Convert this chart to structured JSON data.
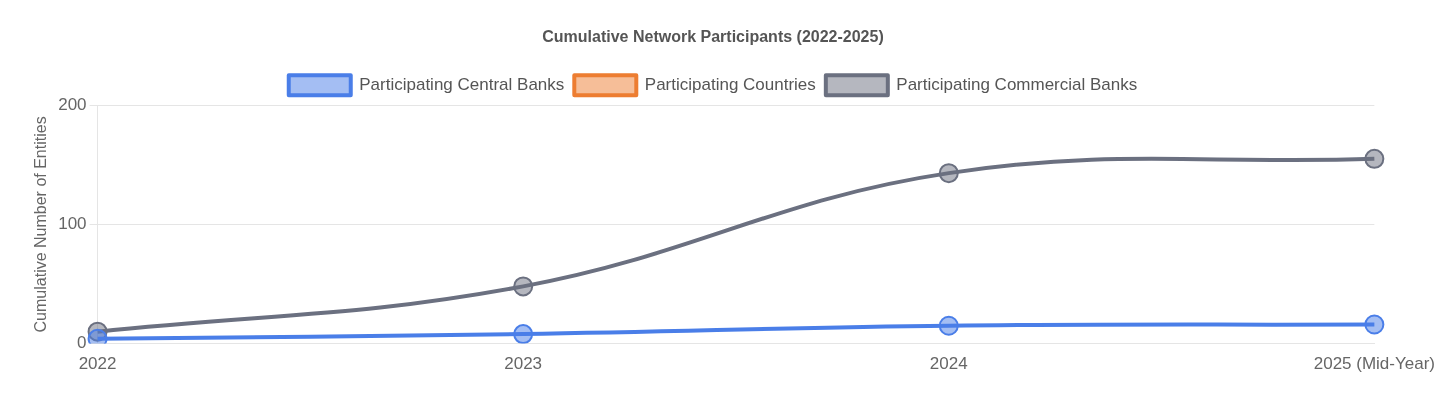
{
  "chart_data": {
    "type": "line",
    "title": "Cumulative Network Participants (2022-2025)",
    "ylabel": "Cumulative Number of Entities",
    "categories": [
      "2022",
      "2023",
      "2024",
      "2025 (Mid-Year)"
    ],
    "series": [
      {
        "name": "Participating Central Banks",
        "color": "#4a7ee8",
        "values": [
          4,
          8,
          15,
          16
        ]
      },
      {
        "name": "Participating Countries",
        "color": "#ed7d31",
        "values": [
          null,
          null,
          null,
          null
        ]
      },
      {
        "name": "Participating Commercial Banks",
        "color": "#6b7080",
        "values": [
          10,
          48,
          143,
          155
        ]
      }
    ],
    "ylim": [
      0,
      200
    ],
    "yticks": [
      0,
      100,
      200
    ],
    "grid": "y",
    "legend": "top",
    "marker": "circle",
    "line_style": "solid"
  }
}
